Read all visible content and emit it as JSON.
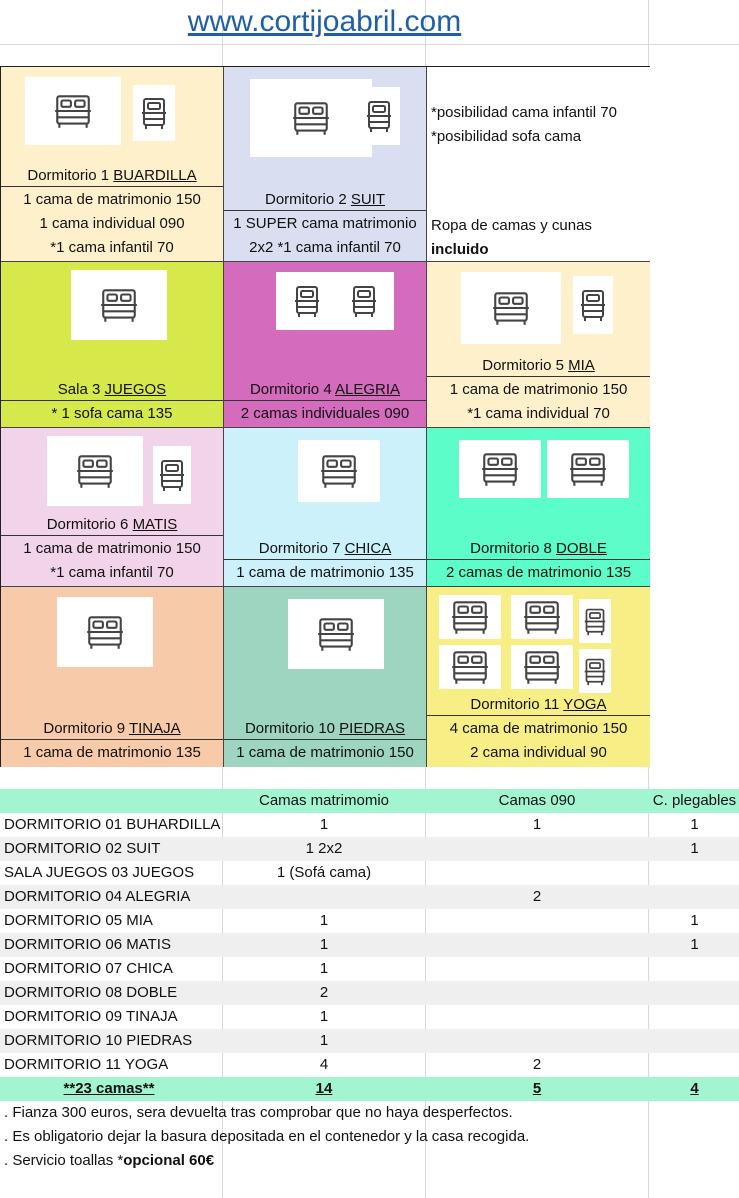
{
  "website": "www.cortijoabril.com",
  "rooms": [
    {
      "lines": [
        [
          "Dormitorio 1 ",
          "BUARDILLA"
        ],
        [
          "1 cama de matrimonio 150"
        ],
        [
          "1 cama individual 090"
        ],
        [
          "*1 cama infantil 70"
        ]
      ]
    },
    {
      "lines": [
        [
          "Dormitorio 2 ",
          "SUIT"
        ],
        [
          "1 SUPER cama matrimonio"
        ],
        [
          "2x2    *1 cama infantil 70"
        ]
      ]
    },
    {
      "notes": [
        "*posibilidad cama infantil 70",
        "*posibilidad sofa cama"
      ],
      "linen": "Ropa de camas y cunas",
      "linen_bold": "incluido"
    },
    {
      "lines": [
        [
          "Sala 3 ",
          "JUEGOS"
        ],
        [
          "* 1 sofa cama  135"
        ]
      ]
    },
    {
      "lines": [
        [
          "Dormitorio 4  ",
          "ALEGRIA"
        ],
        [
          "2 camas individuales 090"
        ]
      ]
    },
    {
      "lines": [
        [
          "Dormitorio 5 ",
          "MIA"
        ],
        [
          "1 cama de matrimonio 150"
        ],
        [
          "*1 cama individual 70"
        ]
      ]
    },
    {
      "lines": [
        [
          "Dormitorio 6 ",
          "MATIS"
        ],
        [
          "1 cama de matrimonio 150"
        ],
        [
          "*1 cama infantil 70"
        ]
      ]
    },
    {
      "lines": [
        [
          "Dormitorio 7 ",
          "CHICA"
        ],
        [
          "1 cama de matrimonio 135"
        ]
      ]
    },
    {
      "lines": [
        [
          "Dormitorio 8  ",
          "DOBLE"
        ],
        [
          "2 camas de matrimonio 135"
        ]
      ]
    },
    {
      "lines": [
        [
          "Dormitorio 9 ",
          "TINAJA"
        ],
        [
          "1 cama de matrimonio 135"
        ]
      ]
    },
    {
      "lines": [
        [
          "Dormitorio 10 ",
          "PIEDRAS"
        ],
        [
          "1 cama de matrimonio 150"
        ]
      ]
    },
    {
      "lines": [
        [
          "Dormitorio 11 ",
          "YOGA"
        ],
        [
          "4 cama de matrimonio 150"
        ],
        [
          "2  cama individual 90"
        ]
      ]
    }
  ],
  "colors": {
    "buardilla": "#fff0cc",
    "suit": "#d9def0",
    "juegos": "#d6e84a",
    "alegria": "#d46bbd",
    "mia": "#fff0cc",
    "matis": "#f2d4ea",
    "chica": "#cdf1fb",
    "doble": "#5dfdc9",
    "tinaja": "#f7caa9",
    "piedras": "#9dd5c0",
    "yoga": "#f7ef86",
    "header": "#a3f5d1"
  },
  "table": {
    "headers": [
      "",
      "Camas matrimomio",
      "Camas 090",
      "C. plegables"
    ],
    "rows": [
      [
        "DORMITORIO 01 BUHARDILLA",
        "1",
        "1",
        "1"
      ],
      [
        "DORMITORIO 02 SUIT",
        "1   2x2",
        "",
        "1"
      ],
      [
        "SALA JUEGOS 03 JUEGOS",
        "1 (Sofá cama)",
        "",
        ""
      ],
      [
        "DORMITORIO 04 ALEGRIA",
        "",
        "2",
        ""
      ],
      [
        "DORMITORIO 05 MIA",
        "1",
        "",
        "1"
      ],
      [
        "DORMITORIO 06 MATIS",
        "1",
        "",
        "1"
      ],
      [
        "DORMITORIO 07 CHICA",
        "1",
        "",
        ""
      ],
      [
        "DORMITORIO 08 DOBLE",
        "2",
        "",
        ""
      ],
      [
        "DORMITORIO 09 TINAJA",
        "1",
        "",
        ""
      ],
      [
        "DORMITORIO 10 PIEDRAS",
        "1",
        "",
        ""
      ],
      [
        "DORMITORIO 11 YOGA",
        "4",
        "2",
        ""
      ]
    ],
    "total": [
      "**23 camas**",
      "14",
      "5",
      "4"
    ]
  },
  "footer": [
    ". Fianza 300 euros, sera devuelta tras comprobar que no haya desperfectos.",
    ". Es obligatorio dejar la basura depositada en el contenedor y la casa recogida.",
    ".  Servicio toallas *"
  ],
  "footer_bold": "opcional 60€"
}
